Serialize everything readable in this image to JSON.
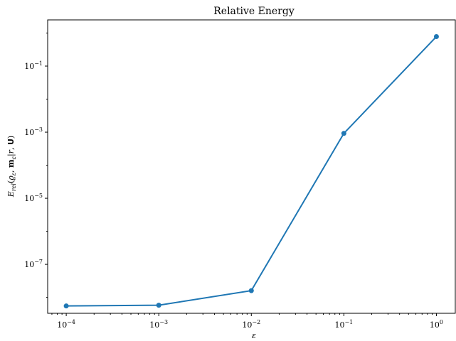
{
  "chart_data": {
    "type": "line",
    "title": "Relative Energy",
    "xlabel": "ε",
    "ylabel": "E_rel(ϱ_ε, m_ε | r, U)",
    "xscale": "log",
    "yscale": "log",
    "xlim": [
      6.3e-05,
      1.6
    ],
    "ylim": [
      3.3e-09,
      2.5
    ],
    "grid": false,
    "x_ticks": [
      {
        "base": "10",
        "exp": "−4",
        "value": 0.0001
      },
      {
        "base": "10",
        "exp": "−3",
        "value": 0.001
      },
      {
        "base": "10",
        "exp": "−2",
        "value": 0.01
      },
      {
        "base": "10",
        "exp": "−1",
        "value": 0.1
      },
      {
        "base": "10",
        "exp": "0",
        "value": 1
      }
    ],
    "y_ticks": [
      {
        "base": "10",
        "exp": "−7",
        "value": 1e-07
      },
      {
        "base": "10",
        "exp": "−5",
        "value": 1e-05
      },
      {
        "base": "10",
        "exp": "−3",
        "value": 0.001
      },
      {
        "base": "10",
        "exp": "−1",
        "value": 0.1
      }
    ],
    "series": [
      {
        "color": "#1f77b4",
        "x": [
          0.0001,
          0.001,
          0.01,
          0.1,
          1
        ],
        "y": [
          5.5e-09,
          5.8e-09,
          1.6e-08,
          0.00092,
          0.78
        ]
      }
    ]
  }
}
